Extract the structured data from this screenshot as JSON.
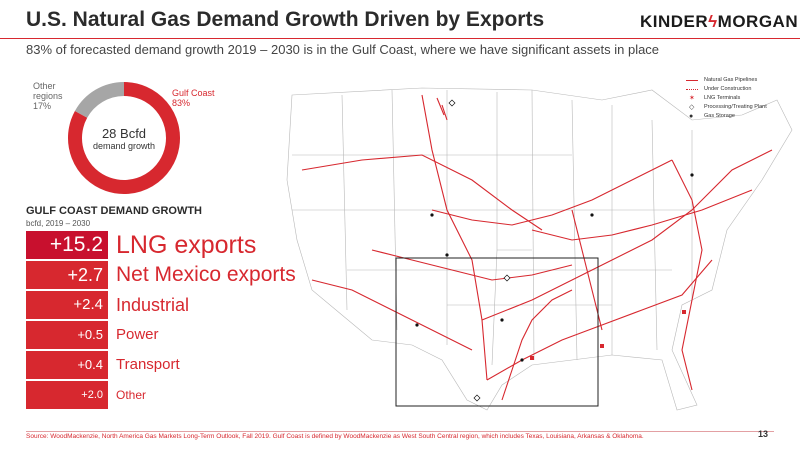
{
  "header": {
    "title": "U.S. Natural Gas Demand Growth Driven by Exports",
    "logo_text_left": "KINDER",
    "logo_text_right": "MORGAN",
    "subtitle": "83% of forecasted demand growth 2019 – 2030 is in the Gulf Coast, where we have significant assets in place"
  },
  "donut": {
    "center_value": "28 Bcfd",
    "center_label": "demand growth",
    "other_label_1": "Other",
    "other_label_2": "regions",
    "other_pct": "17%",
    "gulf_label": "Gulf Coast",
    "gulf_pct": "83%",
    "gulf_color": "#d7282f",
    "other_color": "#a6a6a6"
  },
  "chart_data": {
    "type": "pie",
    "categories": [
      "Gulf Coast",
      "Other regions"
    ],
    "values": [
      83,
      17
    ],
    "colors": [
      "#d7282f",
      "#a6a6a6"
    ]
  },
  "gulf_coast": {
    "heading": "GULF COAST DEMAND GROWTH",
    "unit": "bcfd, 2019 – 2030",
    "rows": [
      {
        "value": "+15.2",
        "label": "LNG exports"
      },
      {
        "value": "+2.7",
        "label": "Net Mexico exports"
      },
      {
        "value": "+2.4",
        "label": "Industrial"
      },
      {
        "value": "+0.5",
        "label": "Power"
      },
      {
        "value": "+0.4",
        "label": "Transport"
      },
      {
        "value": "+2.0",
        "label": "Other"
      }
    ]
  },
  "legend": {
    "items": [
      {
        "label": "Natural Gas Pipelines",
        "icon": "solid-line"
      },
      {
        "label": "Under Construction",
        "icon": "dotted-line"
      },
      {
        "label": "LNG Terminals",
        "icon": "lng-terminal-icon"
      },
      {
        "label": "Processing/Treating Plant",
        "icon": "diamond-icon"
      },
      {
        "label": "Gas Storage",
        "icon": "dot-icon"
      }
    ]
  },
  "footer": {
    "source": "Source:  WoodMackenzie, North America Gas Markets Long-Term Outlook, Fall 2019. Gulf Coast is defined by WoodMackenzie as West South Central region, which includes Texas, Louisiana, Arkansas & Oklahoma.",
    "page_number": "13"
  },
  "colors": {
    "accent": "#d7282f",
    "lng_highlight": "#c8102e"
  }
}
